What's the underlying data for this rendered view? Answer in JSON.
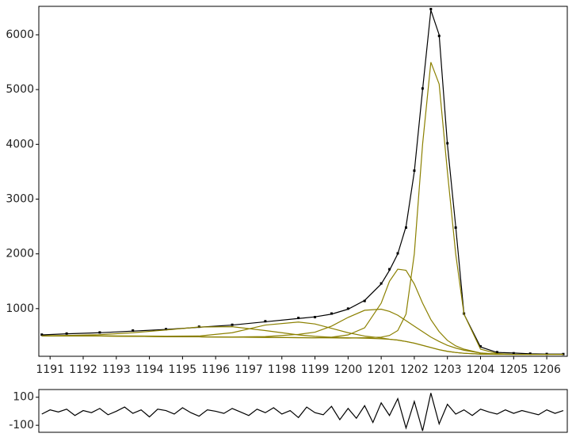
{
  "chart_data": [
    {
      "type": "line",
      "x": [
        1190.75,
        1191.5,
        1192.5,
        1193.5,
        1194.5,
        1195.5,
        1196.5,
        1197.5,
        1198.5,
        1199,
        1199.5,
        1200,
        1200.5,
        1201,
        1201.25,
        1201.5,
        1201.75,
        1202,
        1202.25,
        1202.5,
        1202.75,
        1203,
        1203.25,
        1203.5,
        1204,
        1204.5,
        1205,
        1205.5,
        1206,
        1206.5
      ],
      "series": [
        {
          "mode": "markers",
          "color": "#000000",
          "values": [
            525,
            545,
            565,
            600,
            625,
            670,
            705,
            770,
            830,
            845,
            910,
            1000,
            1140,
            1460,
            1720,
            2010,
            2480,
            3520,
            5020,
            6470,
            5980,
            4020,
            2480,
            910,
            310,
            205,
            185,
            178,
            172,
            170
          ]
        },
        {
          "mode": "line",
          "color": "#000000",
          "values": [
            520,
            540,
            560,
            590,
            620,
            660,
            700,
            760,
            820,
            850,
            900,
            990,
            1150,
            1450,
            1700,
            2000,
            2500,
            3500,
            5000,
            6450,
            6000,
            4000,
            2500,
            900,
            300,
            200,
            190,
            175,
            170,
            170
          ]
        },
        {
          "mode": "line",
          "color": "#8b8000",
          "values": [
            505,
            510,
            525,
            560,
            610,
            665,
            670,
            600,
            520,
            495,
            478,
            468,
            460,
            450,
            440,
            425,
            400,
            370,
            330,
            290,
            250,
            220,
            200,
            185,
            170,
            165,
            165,
            165,
            165,
            165
          ]
        },
        {
          "mode": "line",
          "color": "#8b8000",
          "values": [
            502,
            502,
            503,
            500,
            497,
            500,
            560,
            700,
            755,
            720,
            640,
            560,
            500,
            465,
            442,
            426,
            400,
            370,
            330,
            290,
            250,
            220,
            200,
            185,
            170,
            165,
            165,
            165,
            165,
            165
          ]
        },
        {
          "mode": "line",
          "color": "#8b8000",
          "values": [
            500,
            500,
            500,
            495,
            490,
            485,
            482,
            490,
            530,
            570,
            680,
            840,
            970,
            990,
            950,
            880,
            780,
            680,
            580,
            480,
            400,
            330,
            280,
            240,
            190,
            170,
            165,
            165,
            165,
            165
          ]
        },
        {
          "mode": "line",
          "color": "#8b8000",
          "values": [
            500,
            500,
            500,
            495,
            490,
            485,
            480,
            475,
            470,
            468,
            480,
            520,
            650,
            1100,
            1500,
            1720,
            1700,
            1450,
            1100,
            800,
            580,
            420,
            320,
            260,
            190,
            168,
            165,
            165,
            165,
            165
          ]
        },
        {
          "mode": "line",
          "color": "#8b8000",
          "values": [
            500,
            500,
            500,
            495,
            490,
            485,
            480,
            475,
            470,
            468,
            465,
            462,
            470,
            480,
            510,
            600,
            900,
            2000,
            4000,
            5500,
            5100,
            3500,
            2000,
            900,
            260,
            180,
            165,
            165,
            165,
            165
          ]
        }
      ],
      "xlim": [
        1190.66,
        1206.62
      ],
      "xticks": [
        1191,
        1192,
        1193,
        1194,
        1195,
        1196,
        1197,
        1198,
        1199,
        1200,
        1201,
        1202,
        1203,
        1204,
        1205,
        1206
      ],
      "ylim": [
        130,
        6520
      ],
      "yticks": [
        1000,
        2000,
        3000,
        4000,
        5000,
        6000
      ]
    },
    {
      "type": "line",
      "x": [
        1190.75,
        1191,
        1191.25,
        1191.5,
        1191.75,
        1192,
        1192.25,
        1192.5,
        1192.75,
        1193,
        1193.25,
        1193.5,
        1193.75,
        1194,
        1194.25,
        1194.5,
        1194.75,
        1195,
        1195.25,
        1195.5,
        1195.75,
        1196,
        1196.25,
        1196.5,
        1196.75,
        1197,
        1197.25,
        1197.5,
        1197.75,
        1198,
        1198.25,
        1198.5,
        1198.75,
        1199,
        1199.25,
        1199.5,
        1199.75,
        1200,
        1200.25,
        1200.5,
        1200.75,
        1201,
        1201.25,
        1201.5,
        1201.75,
        1202,
        1202.25,
        1202.5,
        1202.75,
        1203,
        1203.25,
        1203.5,
        1203.75,
        1204,
        1204.25,
        1204.5,
        1204.75,
        1205,
        1205.25,
        1205.5,
        1205.75,
        1206,
        1206.25,
        1206.5
      ],
      "series": [
        {
          "mode": "line",
          "color": "#000000",
          "values": [
            -20,
            10,
            -5,
            15,
            -30,
            5,
            -10,
            20,
            -25,
            0,
            30,
            -15,
            10,
            -40,
            15,
            5,
            -20,
            25,
            -10,
            -35,
            10,
            0,
            -15,
            20,
            -5,
            -30,
            15,
            -10,
            25,
            -20,
            5,
            -45,
            30,
            -10,
            -25,
            35,
            -60,
            20,
            -50,
            40,
            -80,
            60,
            -30,
            90,
            -120,
            70,
            -140,
            130,
            -90,
            50,
            -20,
            10,
            -30,
            15,
            -5,
            -20,
            10,
            -15,
            5,
            -10,
            -25,
            10,
            -15,
            5
          ]
        }
      ],
      "xlim": [
        1190.66,
        1206.62
      ],
      "ylim": [
        -150,
        155
      ],
      "yticks": [
        -100,
        100
      ]
    }
  ]
}
